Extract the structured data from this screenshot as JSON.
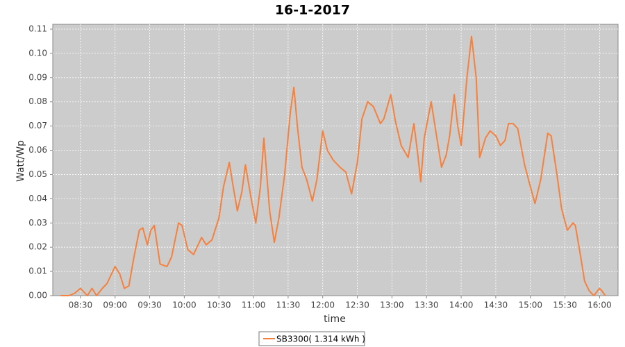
{
  "chart_data": {
    "type": "line",
    "title": "16-1-2017",
    "x_label": "time",
    "y_label": "Watt/Wp",
    "x": [
      "08:13",
      "08:20",
      "08:25",
      "08:30",
      "08:34",
      "08:36",
      "08:40",
      "08:44",
      "08:49",
      "08:53",
      "09:00",
      "09:04",
      "09:08",
      "09:12",
      "09:16",
      "09:21",
      "09:24",
      "09:28",
      "09:31",
      "09:34",
      "09:39",
      "09:45",
      "09:49",
      "09:55",
      "09:58",
      "10:03",
      "10:08",
      "10:15",
      "10:19",
      "10:24",
      "10:30",
      "10:34",
      "10:39",
      "10:42",
      "10:46",
      "10:50",
      "10:53",
      "10:58",
      "11:02",
      "11:06",
      "11:09",
      "11:14",
      "11:18",
      "11:22",
      "11:27",
      "11:32",
      "11:35",
      "11:38",
      "11:42",
      "11:46",
      "11:51",
      "11:55",
      "12:00",
      "12:04",
      "12:09",
      "12:15",
      "12:20",
      "12:25",
      "12:30",
      "12:34",
      "12:39",
      "12:44",
      "12:50",
      "12:53",
      "12:59",
      "13:03",
      "13:08",
      "13:14",
      "13:19",
      "13:22",
      "13:25",
      "13:28",
      "13:34",
      "13:38",
      "13:43",
      "13:47",
      "13:50",
      "13:54",
      "13:57",
      "14:00",
      "14:05",
      "14:09",
      "14:13",
      "14:16",
      "14:21",
      "14:25",
      "14:30",
      "14:34",
      "14:38",
      "14:41",
      "14:45",
      "14:49",
      "14:55",
      "15:00",
      "15:04",
      "15:09",
      "15:15",
      "15:18",
      "15:23",
      "15:27",
      "15:32",
      "15:37",
      "15:39",
      "15:44",
      "15:47",
      "15:51",
      "15:55",
      "16:00",
      "16:02",
      "16:05"
    ],
    "series": [
      {
        "name": "SB3300( 1.314 kWh )",
        "color": "#f7803c",
        "values": [
          0,
          0,
          0.001,
          0.003,
          0.001,
          0,
          0.003,
          0,
          0.003,
          0.005,
          0.012,
          0.009,
          0.003,
          0.004,
          0.015,
          0.027,
          0.028,
          0.021,
          0.027,
          0.029,
          0.013,
          0.012,
          0.016,
          0.03,
          0.029,
          0.019,
          0.017,
          0.024,
          0.021,
          0.023,
          0.032,
          0.045,
          0.055,
          0.046,
          0.035,
          0.043,
          0.054,
          0.04,
          0.03,
          0.045,
          0.065,
          0.035,
          0.022,
          0.032,
          0.05,
          0.076,
          0.086,
          0.07,
          0.053,
          0.048,
          0.039,
          0.048,
          0.068,
          0.06,
          0.056,
          0.053,
          0.051,
          0.042,
          0.055,
          0.073,
          0.08,
          0.078,
          0.071,
          0.073,
          0.083,
          0.072,
          0.062,
          0.057,
          0.071,
          0.06,
          0.047,
          0.065,
          0.08,
          0.068,
          0.053,
          0.058,
          0.066,
          0.083,
          0.07,
          0.062,
          0.09,
          0.107,
          0.09,
          0.057,
          0.065,
          0.068,
          0.066,
          0.062,
          0.064,
          0.071,
          0.071,
          0.069,
          0.054,
          0.045,
          0.038,
          0.048,
          0.067,
          0.066,
          0.05,
          0.036,
          0.027,
          0.03,
          0.029,
          0.015,
          0.006,
          0.002,
          0,
          0.003,
          0.002,
          0
        ]
      }
    ],
    "xlim": [
      "08:06",
      "16:16"
    ],
    "xticks": [
      "08:30",
      "09:00",
      "09:30",
      "10:00",
      "10:30",
      "11:00",
      "11:30",
      "12:00",
      "12:30",
      "13:00",
      "13:30",
      "14:00",
      "14:30",
      "15:00",
      "15:30",
      "16:00"
    ],
    "ylim": [
      0,
      0.112
    ],
    "yticks": [
      {
        "value": 0,
        "label": "0.00"
      },
      0.01,
      0.02,
      0.03,
      0.04,
      0.05,
      0.06,
      0.07,
      0.08,
      0.09,
      {
        "value": 0.1,
        "label": "0.10"
      },
      0.11
    ],
    "grid": true,
    "legend": "bottom"
  }
}
